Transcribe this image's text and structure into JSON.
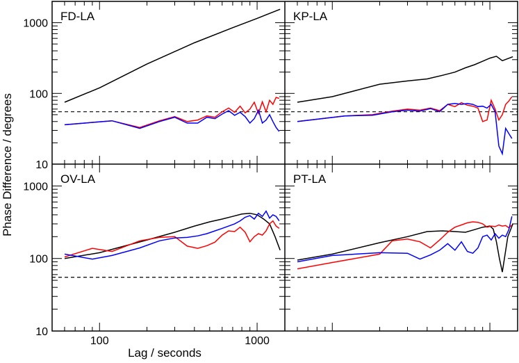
{
  "chart_data": {
    "type": "line",
    "ylabel": "Phase Difference / degrees",
    "xlabel": "Lag / seconds",
    "xscale": "log",
    "yscale": "log",
    "xlim": [
      50,
      1500
    ],
    "ylim": [
      10,
      2000
    ],
    "x_ticklabels": [
      {
        "value": 100,
        "label": "100"
      },
      {
        "value": 1000,
        "label": "1000"
      }
    ],
    "y_ticklabels": [
      {
        "value": 10,
        "label": "10"
      },
      {
        "value": 100,
        "label": "100"
      },
      {
        "value": 1000,
        "label": "1000"
      }
    ],
    "reference_line": {
      "value": 55,
      "style": "dashed"
    },
    "panels": [
      {
        "title": "FD-LA",
        "series": [
          {
            "name": "black",
            "color": "#000000",
            "x": [
              60,
              100,
              200,
              400,
              700,
              1000,
              1400
            ],
            "y": [
              75,
              120,
              260,
              520,
              850,
              1150,
              1550
            ]
          },
          {
            "name": "red",
            "color": "#ff0000",
            "x": [
              60,
              120,
              180,
              240,
              300,
              360,
              420,
              480,
              540,
              600,
              660,
              720,
              780,
              840,
              900,
              960,
              1020,
              1080,
              1140,
              1200,
              1260,
              1320,
              1380
            ],
            "y": [
              36,
              41,
              33,
              41,
              47,
              40,
              42,
              48,
              46,
              55,
              62,
              54,
              66,
              53,
              60,
              75,
              52,
              76,
              55,
              80,
              70,
              88,
              85
            ]
          },
          {
            "name": "blue",
            "color": "#0000ff",
            "x": [
              60,
              120,
              180,
              240,
              300,
              360,
              420,
              480,
              540,
              600,
              660,
              720,
              780,
              840,
              900,
              960,
              1020,
              1080,
              1140,
              1200,
              1260,
              1320,
              1380
            ],
            "y": [
              36,
              41,
              32,
              40,
              46,
              38,
              38,
              46,
              44,
              51,
              57,
              49,
              54,
              47,
              38,
              44,
              58,
              38,
              42,
              50,
              40,
              33,
              29
            ]
          }
        ]
      },
      {
        "title": "KP-LA",
        "series": [
          {
            "name": "black",
            "color": "#000000",
            "x": [
              60,
              100,
              200,
              300,
              400,
              500,
              600,
              700,
              800,
              900,
              1000,
              1100,
              1200,
              1300,
              1400
            ],
            "y": [
              75,
              90,
              135,
              150,
              160,
              180,
              200,
              230,
              255,
              285,
              315,
              335,
              290,
              310,
              330
            ]
          },
          {
            "name": "red",
            "color": "#ff0000",
            "x": [
              60,
              120,
              180,
              240,
              300,
              360,
              420,
              480,
              540,
              600,
              660,
              720,
              780,
              840,
              900,
              960,
              1020,
              1080,
              1140,
              1200,
              1260,
              1320,
              1380
            ],
            "y": [
              40,
              48,
              50,
              56,
              60,
              58,
              62,
              57,
              70,
              65,
              74,
              68,
              66,
              62,
              40,
              42,
              80,
              60,
              42,
              50,
              70,
              78,
              90
            ]
          },
          {
            "name": "blue",
            "color": "#0000ff",
            "x": [
              60,
              120,
              180,
              240,
              300,
              360,
              420,
              480,
              540,
              600,
              660,
              720,
              780,
              840,
              900,
              960,
              1020,
              1080,
              1140,
              1200,
              1260,
              1320,
              1380
            ],
            "y": [
              40,
              48,
              49,
              55,
              58,
              56,
              61,
              55,
              70,
              72,
              70,
              72,
              70,
              65,
              66,
              62,
              70,
              55,
              18,
              14,
              32,
              27,
              23
            ]
          }
        ]
      },
      {
        "title": "OV-LA",
        "series": [
          {
            "name": "black",
            "color": "#000000",
            "x": [
              60,
              100,
              200,
              300,
              400,
              500,
              600,
              700,
              800,
              900,
              1000,
              1100,
              1200,
              1300,
              1400
            ],
            "y": [
              100,
              120,
              180,
              230,
              280,
              320,
              350,
              380,
              410,
              420,
              400,
              350,
              300,
              200,
              130
            ]
          },
          {
            "name": "red",
            "color": "#ff0000",
            "x": [
              60,
              90,
              120,
              180,
              240,
              300,
              360,
              420,
              480,
              540,
              600,
              660,
              720,
              780,
              840,
              900,
              960,
              1020,
              1080,
              1140,
              1200,
              1260,
              1320,
              1380
            ],
            "y": [
              105,
              138,
              125,
              175,
              195,
              200,
              148,
              138,
              150,
              168,
              210,
              240,
              235,
              270,
              230,
              170,
              200,
              220,
              210,
              240,
              300,
              330,
              280,
              260
            ]
          },
          {
            "name": "blue",
            "color": "#0000ff",
            "x": [
              60,
              90,
              120,
              180,
              240,
              300,
              360,
              420,
              480,
              540,
              600,
              660,
              720,
              780,
              840,
              900,
              960,
              1020,
              1080,
              1140,
              1200,
              1260,
              1320,
              1380
            ],
            "y": [
              115,
              98,
              110,
              140,
              175,
              192,
              195,
              205,
              220,
              240,
              260,
              280,
              300,
              330,
              370,
              390,
              350,
              420,
              380,
              450,
              360,
              400,
              380,
              330
            ]
          }
        ]
      },
      {
        "title": "PT-LA",
        "series": [
          {
            "name": "black",
            "color": "#000000",
            "x": [
              60,
              100,
              200,
              300,
              400,
              500,
              600,
              700,
              800,
              900,
              1000,
              1050,
              1100,
              1150,
              1200,
              1300,
              1400
            ],
            "y": [
              95,
              115,
              165,
              200,
              235,
              240,
              235,
              230,
              250,
              270,
              280,
              255,
              170,
              100,
              65,
              200,
              300
            ]
          },
          {
            "name": "red",
            "color": "#ff0000",
            "x": [
              60,
              100,
              200,
              240,
              300,
              360,
              420,
              480,
              540,
              600,
              660,
              720,
              780,
              840,
              900,
              960,
              1020,
              1080,
              1140,
              1200,
              1260,
              1320,
              1380
            ],
            "y": [
              72,
              88,
              115,
              175,
              185,
              170,
              140,
              180,
              230,
              270,
              290,
              310,
              320,
              315,
              300,
              270,
              280,
              275,
              290,
              280,
              285,
              265,
              290
            ]
          },
          {
            "name": "blue",
            "color": "#0000ff",
            "x": [
              60,
              100,
              200,
              300,
              360,
              420,
              480,
              540,
              600,
              660,
              720,
              780,
              840,
              900,
              960,
              1020,
              1080,
              1140,
              1200,
              1260,
              1320,
              1380
            ],
            "y": [
              90,
              110,
              120,
              118,
              98,
              112,
              130,
              160,
              130,
              170,
              125,
              118,
              140,
              200,
              210,
              180,
              220,
              190,
              210,
              200,
              250,
              380
            ]
          }
        ]
      }
    ]
  }
}
